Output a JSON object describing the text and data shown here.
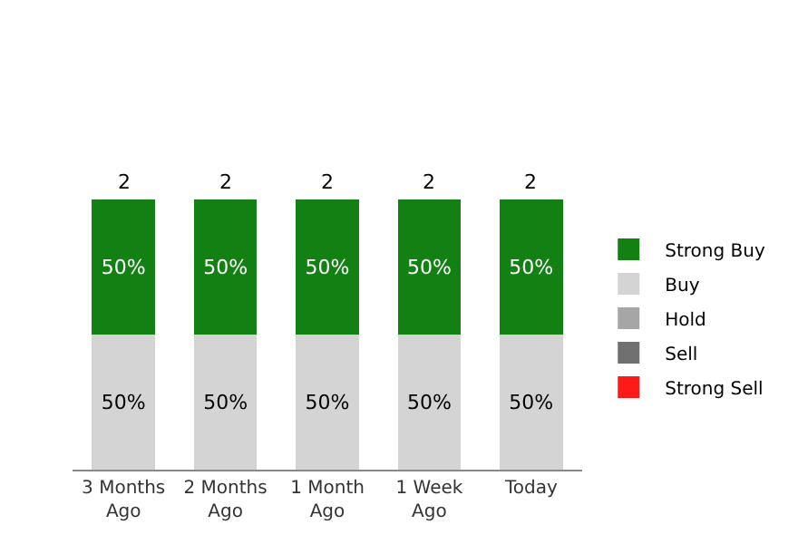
{
  "chart_data": {
    "type": "bar",
    "stacked": true,
    "legend": "right",
    "categories": [
      "3 Months Ago",
      "2 Months Ago",
      "1 Month Ago",
      "1 Week Ago",
      "Today"
    ],
    "series": [
      {
        "name": "Strong Sell",
        "color": "#ff1a1a",
        "values": [
          null,
          null,
          null,
          null,
          null
        ]
      },
      {
        "name": "Sell",
        "color": "#707070",
        "values": [
          null,
          null,
          null,
          null,
          null
        ]
      },
      {
        "name": "Hold",
        "color": "#a6a6a6",
        "values": [
          null,
          null,
          null,
          null,
          null
        ]
      },
      {
        "name": "Buy",
        "color": "#d4d4d4",
        "values": [
          50,
          50,
          50,
          50,
          50
        ],
        "value_labels": [
          "50%",
          "50%",
          "50%",
          "50%",
          "50%"
        ]
      },
      {
        "name": "Strong Buy",
        "color": "#138013",
        "values": [
          50,
          50,
          50,
          50,
          50
        ],
        "value_labels": [
          "50%",
          "50%",
          "50%",
          "50%",
          "50%"
        ]
      }
    ],
    "annotations": [
      {
        "text": "2",
        "x": "3 Months Ago",
        "y": 100
      },
      {
        "text": "2",
        "x": "2 Months Ago",
        "y": 100
      },
      {
        "text": "2",
        "x": "1 Month Ago",
        "y": 100
      },
      {
        "text": "2",
        "x": "1 Week Ago",
        "y": 100
      },
      {
        "text": "2",
        "x": "Today",
        "y": 100
      }
    ]
  }
}
